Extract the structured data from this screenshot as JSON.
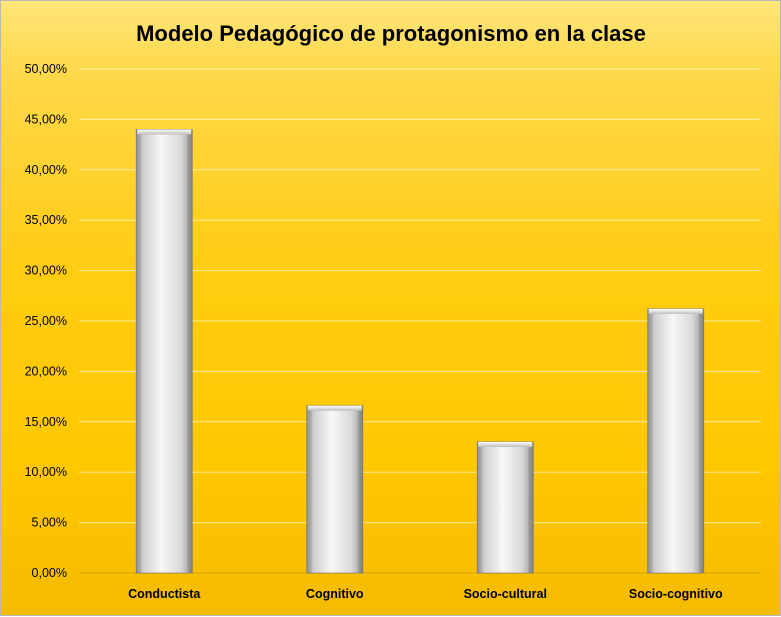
{
  "chart_data": {
    "type": "bar",
    "title": "Modelo Pedagógico de protagonismo en la clase",
    "categories": [
      "Conductista",
      "Cognitivo",
      "Socio-cultural",
      "Socio-cognitivo"
    ],
    "values": [
      44.0,
      16.6,
      13.0,
      26.2
    ],
    "value_unit": "percent",
    "ylim": [
      0,
      50
    ],
    "yticks": [
      0,
      5,
      10,
      15,
      20,
      25,
      30,
      35,
      40,
      45,
      50
    ],
    "ytick_labels": [
      "0,00%",
      "5,00%",
      "10,00%",
      "15,00%",
      "20,00%",
      "25,00%",
      "30,00%",
      "35,00%",
      "40,00%",
      "45,00%",
      "50,00%"
    ],
    "xlabel": "",
    "ylabel": "",
    "grid": true,
    "legend": "none",
    "colors": {
      "background_top": "#ffe67a",
      "background_bottom": "#f5bb00",
      "bar_light": "#f4f4f4",
      "bar_dark": "#9a9a9a",
      "gridline": "#fff3b8"
    }
  }
}
